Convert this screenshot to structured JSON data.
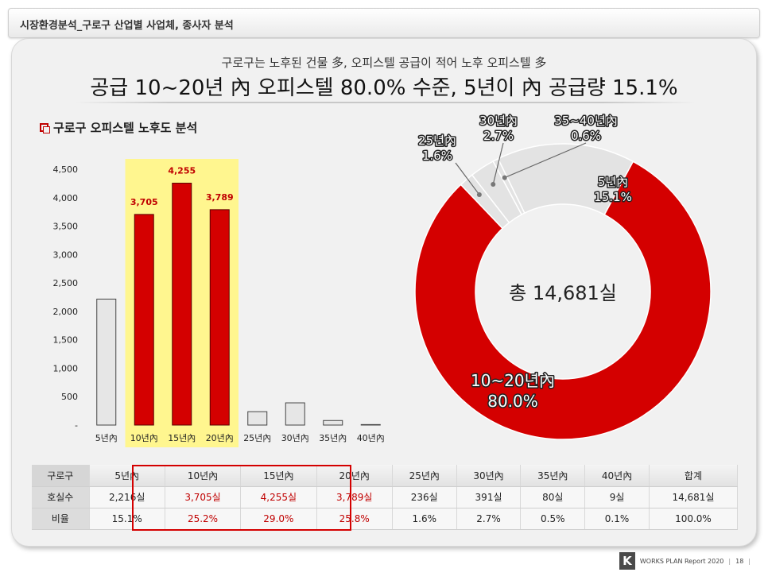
{
  "page_header": {
    "title": "시장환경분석_구로구 산업별 사업체, 종사자 분석"
  },
  "headline": {
    "sub": "구로구는 노후된 건물 多, 오피스텔 공급이 적어 노후 오피스텔 多",
    "main": "공급 10~20년 內 오피스텔 80.0% 수준, 5년이 內 공급량 15.1%"
  },
  "section_title": "구로구 오피스텔 노후도 분석",
  "chart_data": [
    {
      "type": "bar",
      "categories": [
        "5년內",
        "10년內",
        "15년內",
        "20년內",
        "25년內",
        "30년內",
        "35년內",
        "40년內"
      ],
      "values": [
        2216,
        3705,
        4255,
        3789,
        236,
        391,
        80,
        9
      ],
      "highlighted": [
        false,
        true,
        true,
        true,
        false,
        false,
        false,
        false
      ],
      "data_labels": [
        "",
        "3,705",
        "4,255",
        "3,789",
        "",
        "",
        "",
        ""
      ],
      "yticks": [
        "-",
        "500",
        "1,000",
        "1,500",
        "2,000",
        "2,500",
        "3,000",
        "3,500",
        "4,000",
        "4,500"
      ],
      "ylim": [
        0,
        4500
      ],
      "colors": {
        "highlight": "#d40000",
        "normal": "#e6e6e6",
        "highlight_bg": "#fff68f",
        "label": "#c00000"
      }
    },
    {
      "type": "pie",
      "donut": true,
      "center_label": "총 14,681실",
      "slices": [
        {
          "label": "5년內",
          "pct_label": "15.1%",
          "value": 15.1,
          "color": "#e3e3e3"
        },
        {
          "label": "10~20년內",
          "pct_label": "80.0%",
          "value": 80.0,
          "color": "#d40000"
        },
        {
          "label": "25년內",
          "pct_label": "1.6%",
          "value": 1.6,
          "color": "#e3e3e3"
        },
        {
          "label": "30년內",
          "pct_label": "2.7%",
          "value": 2.7,
          "color": "#e3e3e3"
        },
        {
          "label": "35~40년內",
          "pct_label": "0.6%",
          "value": 0.6,
          "color": "#e3e3e3"
        }
      ]
    },
    {
      "type": "table",
      "columns": [
        "구로구",
        "5년內",
        "10년內",
        "15년內",
        "20년內",
        "25년內",
        "30년內",
        "35년內",
        "40년內",
        "합계"
      ],
      "rows": [
        [
          "호실수",
          "2,216실",
          "3,705실",
          "4,255실",
          "3,789실",
          "236실",
          "391실",
          "80실",
          "9실",
          "14,681실"
        ],
        [
          "비율",
          "15.1%",
          "25.2%",
          "29.0%",
          "25.8%",
          "1.6%",
          "2.7%",
          "0.5%",
          "0.1%",
          "100.0%"
        ]
      ],
      "highlight_columns": [
        2,
        3,
        4
      ]
    }
  ],
  "footer": {
    "brand_letter": "K",
    "brand_text": "WORKS PLAN Report 2020",
    "page_number": "18"
  }
}
